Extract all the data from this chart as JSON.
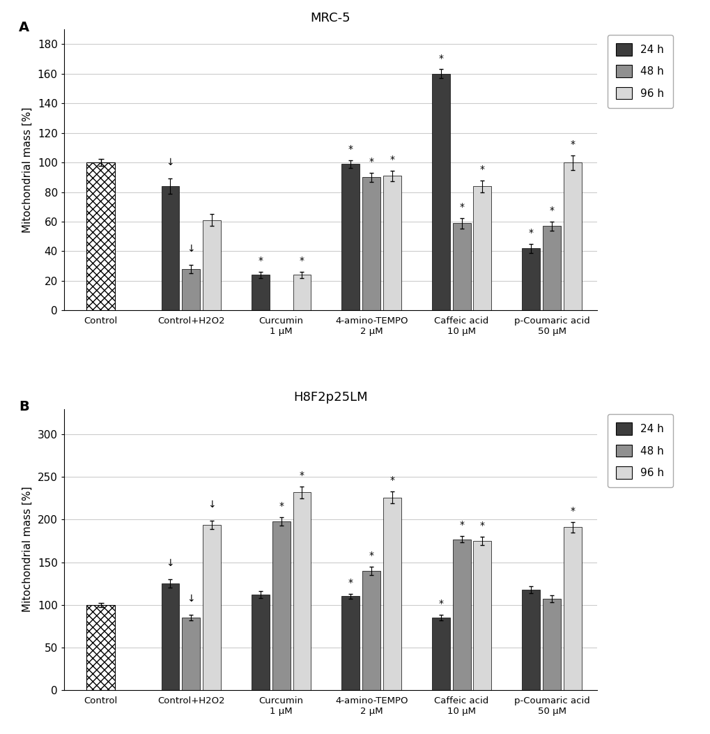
{
  "panel_A": {
    "title": "MRC-5",
    "label": "A",
    "ylabel": "Mitochondrial mass [%]",
    "ylim": [
      0,
      190
    ],
    "yticks": [
      0,
      20,
      40,
      60,
      80,
      100,
      120,
      140,
      160,
      180
    ],
    "categories": [
      "Control",
      "Control+H2O2",
      "Curcumin\n1 μM",
      "4-amino-TEMPO\n2 μM",
      "Caffeic acid\n10 μM",
      "p-Coumaric acid\n50 μM"
    ],
    "values_24h": [
      100,
      84,
      24,
      99,
      160,
      42
    ],
    "values_48h": [
      null,
      28,
      null,
      90,
      59,
      57
    ],
    "values_96h": [
      null,
      61,
      24,
      91,
      84,
      100
    ],
    "err_24h": [
      2.5,
      5,
      2,
      2.5,
      3,
      3
    ],
    "err_48h": [
      null,
      3,
      null,
      3,
      3.5,
      3
    ],
    "err_96h": [
      null,
      4,
      2,
      3.5,
      4,
      5
    ],
    "star_24h": [
      false,
      false,
      true,
      true,
      true,
      true
    ],
    "star_48h": [
      false,
      false,
      false,
      true,
      true,
      true
    ],
    "star_96h": [
      false,
      false,
      true,
      true,
      true,
      true
    ],
    "arrow_24h": [
      false,
      true,
      false,
      false,
      false,
      false
    ],
    "arrow_48h": [
      false,
      true,
      false,
      false,
      false,
      false
    ],
    "arrow_96h": [
      false,
      false,
      false,
      false,
      false,
      false
    ]
  },
  "panel_B": {
    "title": "H8F2p25LM",
    "label": "B",
    "ylabel": "Mitochondrial mass [%]",
    "ylim": [
      0,
      330
    ],
    "yticks": [
      0,
      50,
      100,
      150,
      200,
      250,
      300
    ],
    "categories": [
      "Control",
      "Control+H2O2",
      "Curcumin\n1 μM",
      "4-amino-TEMPO\n2 μM",
      "Caffeic acid\n10 μM",
      "p-Coumaric acid\n50 μM"
    ],
    "values_24h": [
      100,
      125,
      112,
      110,
      85,
      118
    ],
    "values_48h": [
      null,
      85,
      198,
      140,
      177,
      107
    ],
    "values_96h": [
      null,
      194,
      232,
      226,
      175,
      191
    ],
    "err_24h": [
      2.5,
      5,
      4,
      3,
      3.5,
      4
    ],
    "err_48h": [
      null,
      3.5,
      5,
      5,
      4,
      4
    ],
    "err_96h": [
      null,
      5,
      7,
      7,
      5,
      6
    ],
    "star_24h": [
      false,
      false,
      false,
      true,
      true,
      false
    ],
    "star_48h": [
      false,
      false,
      true,
      true,
      true,
      false
    ],
    "star_96h": [
      false,
      false,
      true,
      true,
      true,
      true
    ],
    "arrow_24h": [
      false,
      true,
      false,
      false,
      false,
      false
    ],
    "arrow_48h": [
      false,
      true,
      false,
      false,
      false,
      false
    ],
    "arrow_96h": [
      false,
      true,
      false,
      false,
      false,
      false
    ]
  },
  "colors": {
    "24h": "#3d3d3d",
    "48h": "#909090",
    "96h": "#d8d8d8"
  },
  "bar_width": 0.22,
  "figsize": [
    10.2,
    10.53
  ],
  "dpi": 100
}
